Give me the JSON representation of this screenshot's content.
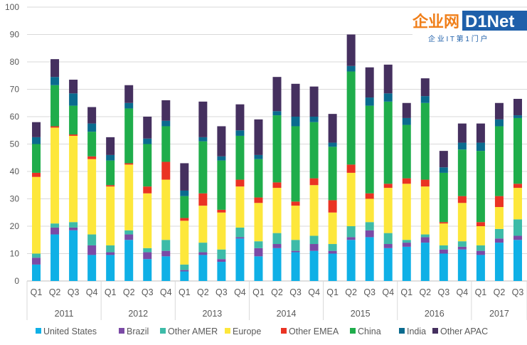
{
  "chart_data": {
    "type": "bar",
    "stacked": true,
    "title": "",
    "xlabel": "",
    "ylabel": "",
    "ylim": [
      0,
      100
    ],
    "yticks": [
      0,
      10,
      20,
      30,
      40,
      50,
      60,
      70,
      80,
      90,
      100
    ],
    "grid": true,
    "legend_position": "bottom",
    "years": [
      {
        "label": "2011",
        "quarters": [
          "Q1",
          "Q2",
          "Q3",
          "Q4"
        ]
      },
      {
        "label": "2012",
        "quarters": [
          "Q1",
          "Q2",
          "Q3",
          "Q4"
        ]
      },
      {
        "label": "2013",
        "quarters": [
          "Q1",
          "Q2",
          "Q3",
          "Q4"
        ]
      },
      {
        "label": "2014",
        "quarters": [
          "Q1",
          "Q2",
          "Q3",
          "Q4"
        ]
      },
      {
        "label": "2015",
        "quarters": [
          "Q1",
          "Q2",
          "Q3",
          "Q4"
        ]
      },
      {
        "label": "2016",
        "quarters": [
          "Q1",
          "Q2",
          "Q3",
          "Q4"
        ]
      },
      {
        "label": "2017",
        "quarters": [
          "Q1",
          "Q2",
          "Q3"
        ]
      }
    ],
    "series": [
      {
        "name": "United States",
        "color": "#0fb0e6",
        "values": [
          6,
          17,
          18.5,
          9.5,
          9.5,
          15,
          8,
          9,
          3.5,
          9.5,
          7,
          15.5,
          9,
          12,
          10.5,
          11,
          10,
          15,
          16,
          12,
          12.5,
          14,
          10,
          11.5,
          9.5,
          14,
          15
        ]
      },
      {
        "name": "Brazil",
        "color": "#7b4aa6",
        "values": [
          2.5,
          2.5,
          1,
          3.5,
          1,
          2,
          2.5,
          2,
          0.5,
          1,
          1,
          0.5,
          3,
          1.5,
          0.5,
          2.5,
          1,
          1,
          2.5,
          1.5,
          1.5,
          2,
          1.5,
          1,
          1.5,
          1.5,
          1.5
        ]
      },
      {
        "name": "Other AMER",
        "color": "#3dbba8",
        "values": [
          1.5,
          1.5,
          2,
          4,
          2.5,
          1.5,
          1.5,
          4,
          2,
          3.5,
          3.5,
          3.5,
          2.5,
          4,
          4,
          3,
          2.5,
          4,
          3,
          4,
          1,
          1,
          1.5,
          2,
          2,
          3.5,
          6
        ]
      },
      {
        "name": "Europe",
        "color": "#fde73b",
        "values": [
          28,
          35,
          31.5,
          27.5,
          21.5,
          24,
          20,
          22,
          16,
          13.5,
          13.5,
          15,
          14,
          16.5,
          12.5,
          18.5,
          11.5,
          19.5,
          8.5,
          16.5,
          20.5,
          17.5,
          8,
          14,
          7,
          8,
          11.5
        ]
      },
      {
        "name": "Other EMEA",
        "color": "#ea3323",
        "values": [
          1.5,
          0.5,
          0.5,
          1,
          0.5,
          0.5,
          2.5,
          6.5,
          1,
          4.5,
          1,
          2.5,
          2,
          2,
          1.5,
          2.5,
          4.5,
          3,
          2,
          1.5,
          2,
          2.5,
          0.5,
          2.5,
          1.5,
          4,
          1.5
        ]
      },
      {
        "name": "China",
        "color": "#1fad4b",
        "values": [
          10.5,
          15,
          10.5,
          9,
          9,
          20,
          15.5,
          13,
          8,
          19,
          18,
          16,
          14,
          24.5,
          27.5,
          20.5,
          19.5,
          34,
          32,
          30,
          19.5,
          28,
          18,
          17,
          26,
          25.5,
          24
        ]
      },
      {
        "name": "India",
        "color": "#0a6b8f",
        "values": [
          2.5,
          3,
          4.5,
          3,
          2,
          2,
          2,
          2,
          2,
          1.5,
          1.5,
          2,
          1.5,
          1.5,
          3.5,
          2,
          1.5,
          2,
          3,
          3,
          2.5,
          2.5,
          2,
          2.5,
          3,
          2.5,
          1
        ]
      },
      {
        "name": "Other APAC",
        "color": "#45305f",
        "values": [
          5.5,
          6.5,
          5,
          6,
          6.5,
          6.5,
          8,
          7.5,
          10,
          13,
          11,
          9.5,
          13,
          12.5,
          12,
          11,
          10.5,
          11.5,
          11,
          10.5,
          5.5,
          6.5,
          6,
          7,
          7,
          6,
          6
        ]
      }
    ]
  },
  "watermark": {
    "logo_cn": "企业网",
    "logo_en": "D1Net",
    "tagline": "企 业 I T 第 1 门 户"
  }
}
